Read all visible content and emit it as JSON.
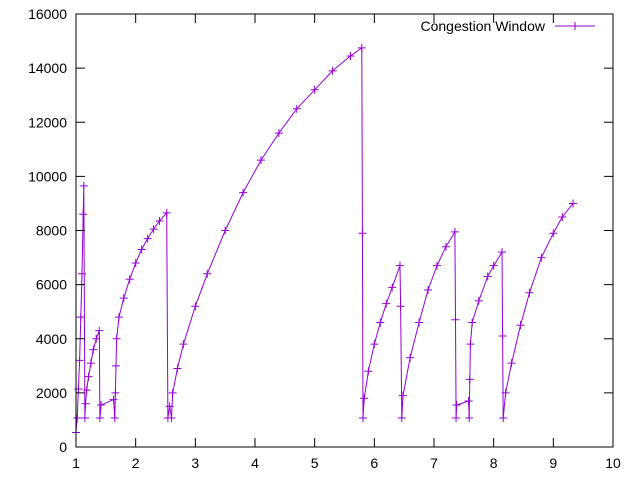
{
  "chart_data": {
    "type": "line",
    "title": "",
    "xlabel": "",
    "ylabel": "",
    "xlim": [
      1,
      10
    ],
    "ylim": [
      0,
      16000
    ],
    "xticks": [
      1,
      2,
      3,
      4,
      5,
      6,
      7,
      8,
      9,
      10
    ],
    "yticks": [
      0,
      2000,
      4000,
      6000,
      8000,
      10000,
      12000,
      14000,
      16000
    ],
    "grid": false,
    "legend_position": "top-right",
    "marker": "plus",
    "color": "#9400d3",
    "series": [
      {
        "name": "Congestion Window",
        "points": [
          [
            1.0,
            536
          ],
          [
            1.02,
            1072
          ],
          [
            1.04,
            2144
          ],
          [
            1.06,
            3200
          ],
          [
            1.08,
            4800
          ],
          [
            1.1,
            6400
          ],
          [
            1.12,
            8600
          ],
          [
            1.13,
            9650
          ],
          [
            1.15,
            1072
          ],
          [
            1.16,
            1600
          ],
          [
            1.18,
            2100
          ],
          [
            1.21,
            2600
          ],
          [
            1.25,
            3100
          ],
          [
            1.29,
            3600
          ],
          [
            1.34,
            4000
          ],
          [
            1.39,
            4300
          ],
          [
            1.4,
            1072
          ],
          [
            1.42,
            1550
          ],
          [
            1.63,
            1750
          ],
          [
            1.65,
            1072
          ],
          [
            1.66,
            2000
          ],
          [
            1.67,
            3000
          ],
          [
            1.68,
            4000
          ],
          [
            1.72,
            4800
          ],
          [
            1.8,
            5500
          ],
          [
            1.9,
            6200
          ],
          [
            2.0,
            6800
          ],
          [
            2.1,
            7300
          ],
          [
            2.2,
            7700
          ],
          [
            2.3,
            8050
          ],
          [
            2.4,
            8350
          ],
          [
            2.52,
            8650
          ],
          [
            2.54,
            1072
          ],
          [
            2.57,
            1500
          ],
          [
            2.6,
            1072
          ],
          [
            2.62,
            2000
          ],
          [
            2.7,
            2900
          ],
          [
            2.8,
            3800
          ],
          [
            3.0,
            5200
          ],
          [
            3.2,
            6400
          ],
          [
            3.5,
            8000
          ],
          [
            3.8,
            9400
          ],
          [
            4.1,
            10600
          ],
          [
            4.4,
            11600
          ],
          [
            4.7,
            12500
          ],
          [
            5.0,
            13200
          ],
          [
            5.3,
            13900
          ],
          [
            5.6,
            14450
          ],
          [
            5.79,
            14750
          ],
          [
            5.8,
            7900
          ],
          [
            5.81,
            1072
          ],
          [
            5.83,
            1800
          ],
          [
            5.9,
            2800
          ],
          [
            6.0,
            3800
          ],
          [
            6.1,
            4600
          ],
          [
            6.2,
            5300
          ],
          [
            6.3,
            5900
          ],
          [
            6.43,
            6700
          ],
          [
            6.44,
            5200
          ],
          [
            6.46,
            1072
          ],
          [
            6.48,
            1900
          ],
          [
            6.6,
            3300
          ],
          [
            6.75,
            4600
          ],
          [
            6.9,
            5800
          ],
          [
            7.05,
            6700
          ],
          [
            7.2,
            7400
          ],
          [
            7.35,
            7950
          ],
          [
            7.36,
            4700
          ],
          [
            7.37,
            1072
          ],
          [
            7.38,
            1550
          ],
          [
            7.58,
            1700
          ],
          [
            7.59,
            1072
          ],
          [
            7.6,
            2500
          ],
          [
            7.61,
            3800
          ],
          [
            7.64,
            4600
          ],
          [
            7.75,
            5400
          ],
          [
            7.9,
            6300
          ],
          [
            8.0,
            6700
          ],
          [
            8.14,
            7200
          ],
          [
            8.15,
            4100
          ],
          [
            8.16,
            1072
          ],
          [
            8.2,
            2000
          ],
          [
            8.3,
            3100
          ],
          [
            8.45,
            4500
          ],
          [
            8.6,
            5700
          ],
          [
            8.8,
            7000
          ],
          [
            9.0,
            7900
          ],
          [
            9.15,
            8500
          ],
          [
            9.33,
            9000
          ]
        ]
      }
    ]
  }
}
